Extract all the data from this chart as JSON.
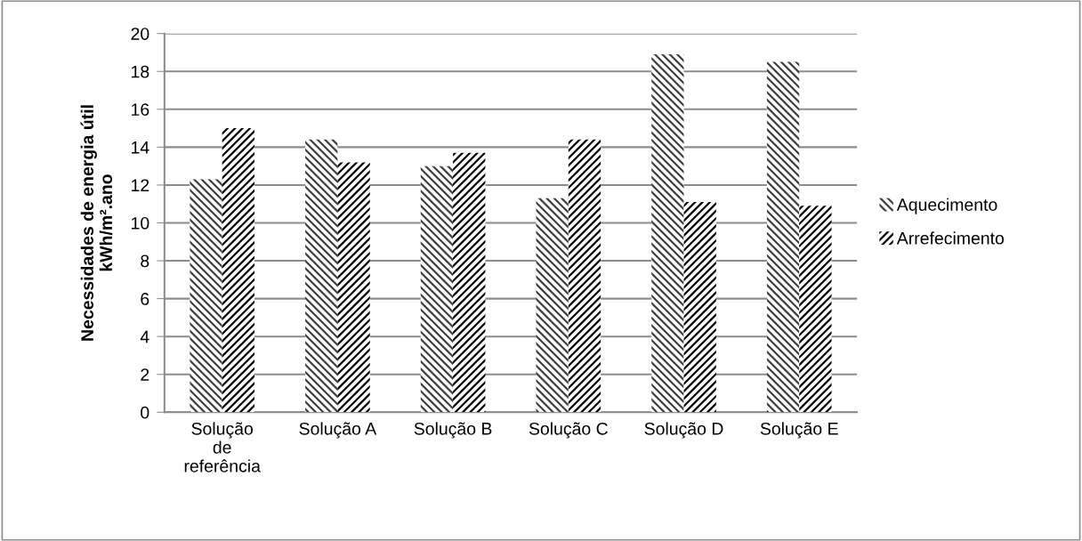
{
  "chart_data": {
    "type": "bar",
    "ylabel": "Necessidades de energia útil\nkWh/m².ano",
    "categories": [
      "Solução\nde\nreferência",
      "Solução A",
      "Solução B",
      "Solução C",
      "Solução D",
      "Solução E"
    ],
    "series": [
      {
        "name": "Aquecimento",
        "color": "#404040",
        "values": [
          12.3,
          14.4,
          13.0,
          11.3,
          18.9,
          18.5
        ]
      },
      {
        "name": "Arrefecimento",
        "color": "#000000",
        "values": [
          15.0,
          13.2,
          13.7,
          14.4,
          11.1,
          10.9
        ]
      }
    ],
    "ylim": [
      0,
      20
    ],
    "yticks": [
      0,
      2,
      4,
      6,
      8,
      10,
      12,
      14,
      16,
      18,
      20
    ],
    "grid": "y",
    "legend": "right"
  }
}
